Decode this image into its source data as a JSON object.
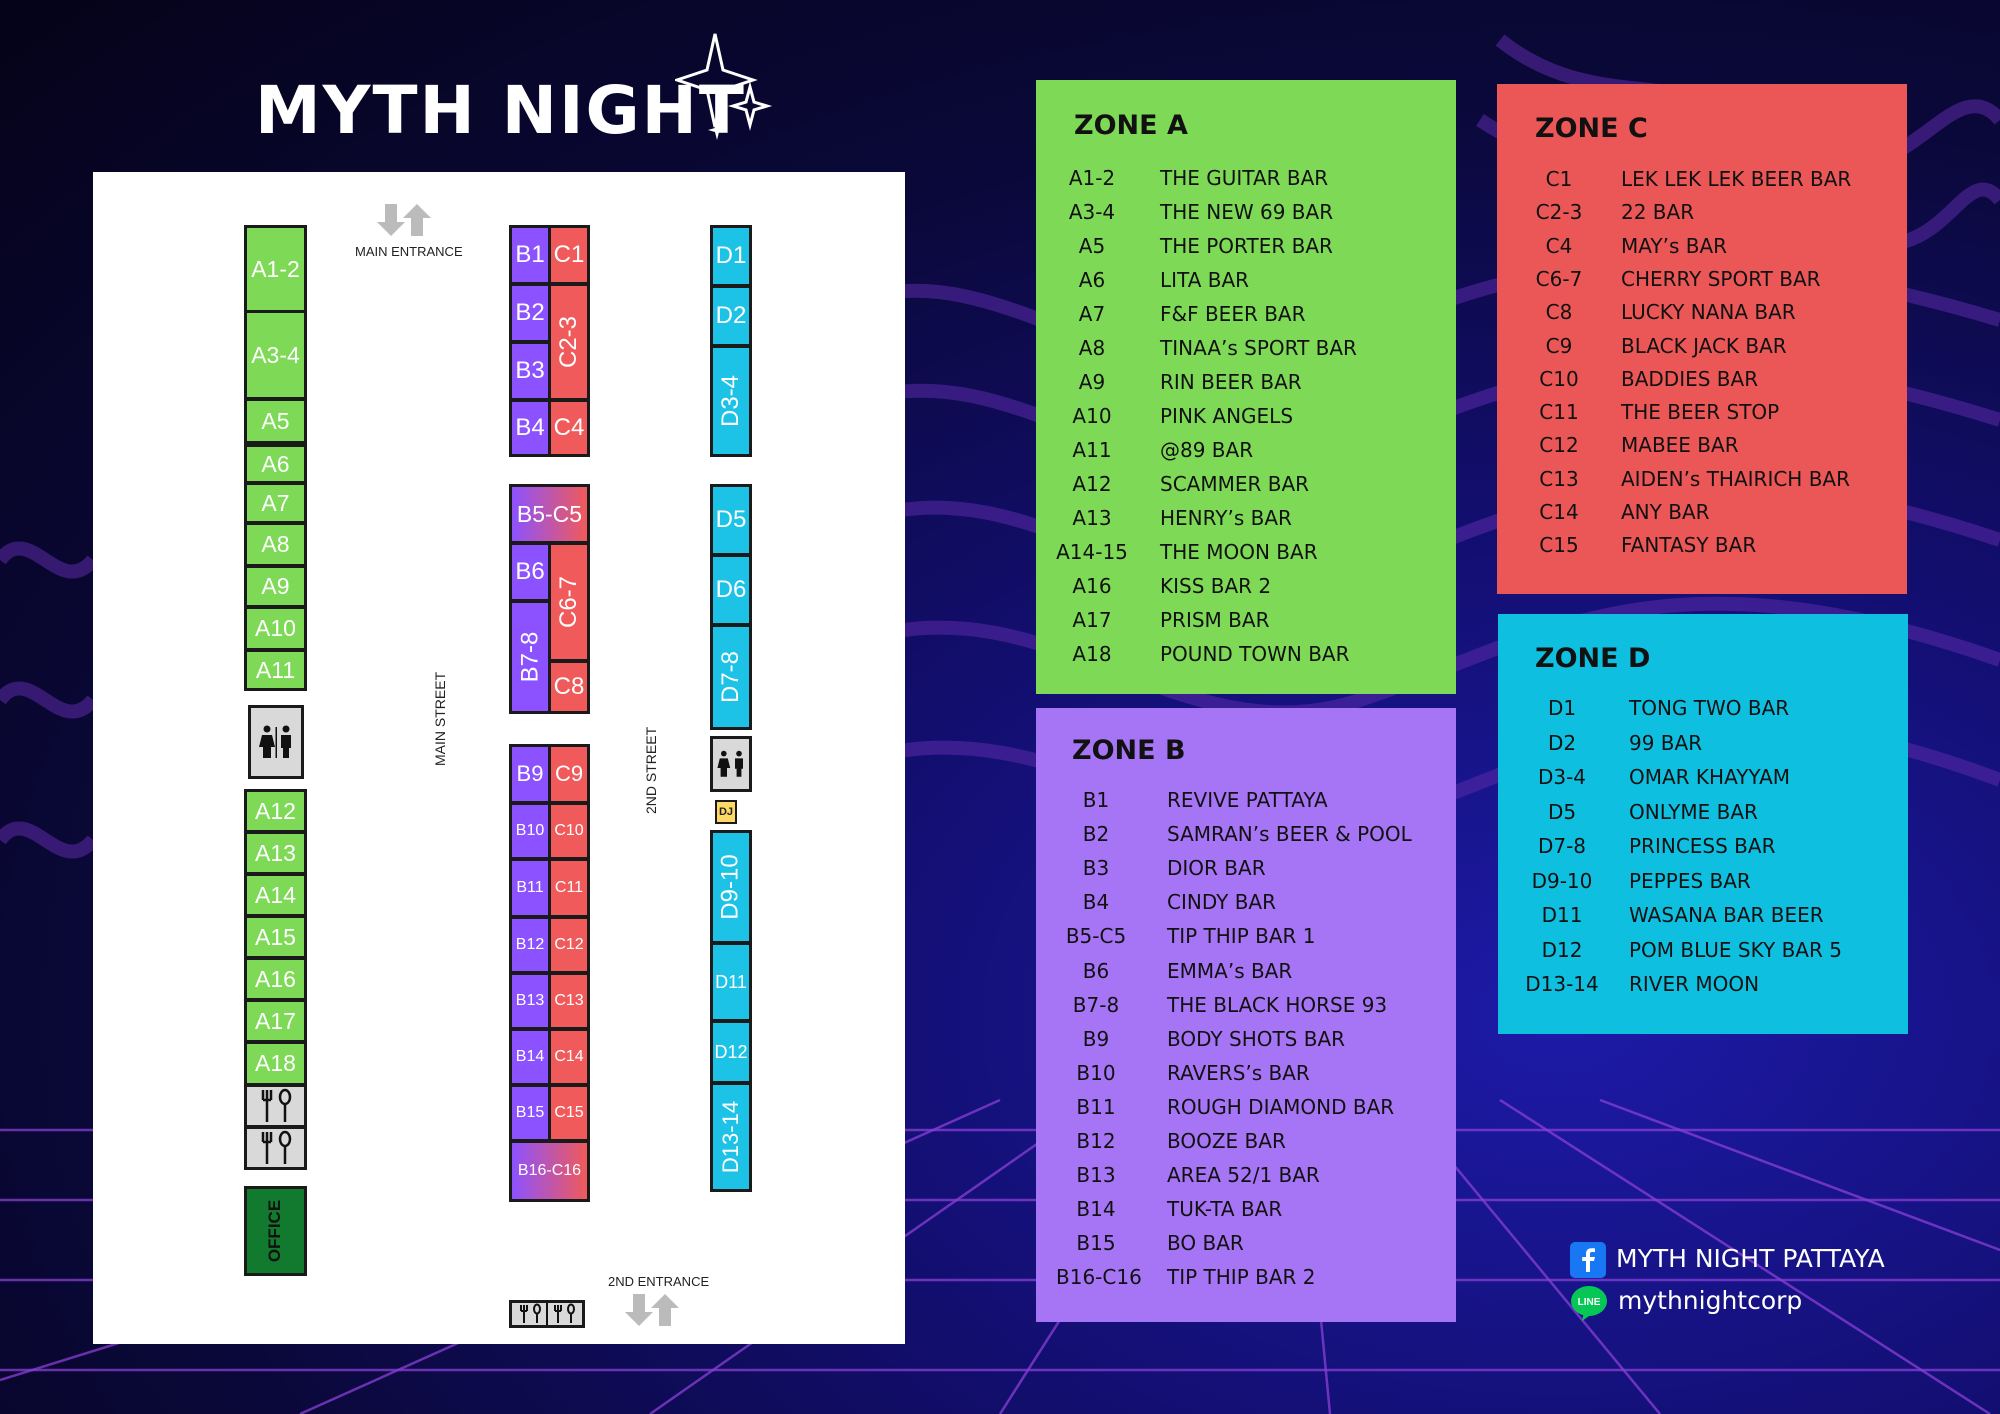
{
  "title": "MYTH NIGHT",
  "colors": {
    "zone_a": "#7ed957",
    "zone_b": "#a675f5",
    "zone_c": "#eb5757",
    "zone_d": "#0fbfe0",
    "office": "#127a2e"
  },
  "map": {
    "main_entrance": "MAIN ENTRANCE",
    "second_entrance": "2ND ENTRANCE",
    "main_street": "MAIN STREET",
    "second_street": "2ND STREET",
    "office": "OFFICE",
    "dj": "DJ",
    "stalls": {
      "A1_2": "A1-2",
      "A3_4": "A3-4",
      "A5": "A5",
      "A6": "A6",
      "A7": "A7",
      "A8": "A8",
      "A9": "A9",
      "A10": "A10",
      "A11": "A11",
      "A12": "A12",
      "A13": "A13",
      "A14": "A14",
      "A15": "A15",
      "A16": "A16",
      "A17": "A17",
      "A18": "A18",
      "B1": "B1",
      "B2": "B2",
      "B3": "B3",
      "B4": "B4",
      "B5_C5": "B5-C5",
      "B6": "B6",
      "B7_8": "B7-8",
      "B9": "B9",
      "B10": "B10",
      "B11": "B11",
      "B12": "B12",
      "B13": "B13",
      "B14": "B14",
      "B15": "B15",
      "B16_C16": "B16-C16",
      "C1": "C1",
      "C2_3": "C2-3",
      "C4": "C4",
      "C6_7": "C6-7",
      "C8": "C8",
      "C9": "C9",
      "C10": "C10",
      "C11": "C11",
      "C12": "C12",
      "C13": "C13",
      "C14": "C14",
      "C15": "C15",
      "D1": "D1",
      "D2": "D2",
      "D3_4": "D3-4",
      "D5": "D5",
      "D6": "D6",
      "D7_8": "D7-8",
      "D9_10": "D9-10",
      "D11": "D11",
      "D12": "D12",
      "D13_14": "D13-14"
    }
  },
  "zones": {
    "a": {
      "title": "ZONE A",
      "rows": [
        {
          "code": "A1-2",
          "name": "THE GUITAR BAR"
        },
        {
          "code": "A3-4",
          "name": "THE NEW 69 BAR"
        },
        {
          "code": "A5",
          "name": "THE PORTER BAR"
        },
        {
          "code": "A6",
          "name": "LITA BAR"
        },
        {
          "code": "A7",
          "name": "F&F BEER BAR"
        },
        {
          "code": "A8",
          "name": "TINAA’s SPORT BAR"
        },
        {
          "code": "A9",
          "name": "RIN BEER BAR"
        },
        {
          "code": "A10",
          "name": "PINK ANGELS"
        },
        {
          "code": "A11",
          "name": "@89 BAR"
        },
        {
          "code": "A12",
          "name": "SCAMMER BAR"
        },
        {
          "code": "A13",
          "name": "HENRY’s BAR"
        },
        {
          "code": "A14-15",
          "name": "THE MOON BAR"
        },
        {
          "code": "A16",
          "name": "KISS BAR 2"
        },
        {
          "code": "A17",
          "name": "PRISM BAR"
        },
        {
          "code": "A18",
          "name": "POUND TOWN BAR"
        }
      ]
    },
    "b": {
      "title": "ZONE B",
      "rows": [
        {
          "code": "B1",
          "name": "REVIVE PATTAYA"
        },
        {
          "code": "B2",
          "name": "SAMRAN’s BEER & POOL"
        },
        {
          "code": "B3",
          "name": "DIOR BAR"
        },
        {
          "code": "B4",
          "name": "CINDY BAR"
        },
        {
          "code": "B5-C5",
          "name": "TIP THIP BAR 1"
        },
        {
          "code": "B6",
          "name": "EMMA’s BAR"
        },
        {
          "code": "B7-8",
          "name": "THE BLACK HORSE 93"
        },
        {
          "code": "B9",
          "name": "BODY SHOTS BAR"
        },
        {
          "code": "B10",
          "name": "RAVERS’s BAR"
        },
        {
          "code": "B11",
          "name": "ROUGH DIAMOND BAR"
        },
        {
          "code": "B12",
          "name": "BOOZE BAR"
        },
        {
          "code": "B13",
          "name": "AREA 52/1 BAR"
        },
        {
          "code": "B14",
          "name": "TUK-TA BAR"
        },
        {
          "code": "B15",
          "name": "BO BAR"
        },
        {
          "code": "B16-C16",
          "name": "TIP THIP BAR 2"
        }
      ]
    },
    "c": {
      "title": "ZONE C",
      "rows": [
        {
          "code": "C1",
          "name": "LEK LEK LEK BEER BAR"
        },
        {
          "code": "C2-3",
          "name": "22 BAR"
        },
        {
          "code": "C4",
          "name": "MAY’s BAR"
        },
        {
          "code": "C6-7",
          "name": "CHERRY SPORT BAR"
        },
        {
          "code": "C8",
          "name": "LUCKY NANA BAR"
        },
        {
          "code": "C9",
          "name": "BLACK JACK BAR"
        },
        {
          "code": "C10",
          "name": "BADDIES BAR"
        },
        {
          "code": "C11",
          "name": "THE BEER STOP"
        },
        {
          "code": "C12",
          "name": "MABEE BAR"
        },
        {
          "code": "C13",
          "name": "AIDEN’s THAIRICH BAR"
        },
        {
          "code": "C14",
          "name": "ANY BAR"
        },
        {
          "code": "C15",
          "name": "FANTASY BAR"
        }
      ]
    },
    "d": {
      "title": "ZONE D",
      "rows": [
        {
          "code": "D1",
          "name": "TONG TWO BAR"
        },
        {
          "code": "D2",
          "name": "99 BAR"
        },
        {
          "code": "D3-4",
          "name": "OMAR KHAYYAM"
        },
        {
          "code": "D5",
          "name": "ONLYME BAR"
        },
        {
          "code": "D7-8",
          "name": "PRINCESS BAR"
        },
        {
          "code": "D9-10",
          "name": "PEPPES BAR"
        },
        {
          "code": "D11",
          "name": "WASANA BAR BEER"
        },
        {
          "code": "D12",
          "name": "POM BLUE SKY BAR 5"
        },
        {
          "code": "D13-14",
          "name": "RIVER MOON"
        }
      ]
    }
  },
  "social": {
    "facebook": "MYTH NIGHT PATTAYA",
    "line_icon_text": "LINE",
    "line": "mythnightcorp"
  }
}
